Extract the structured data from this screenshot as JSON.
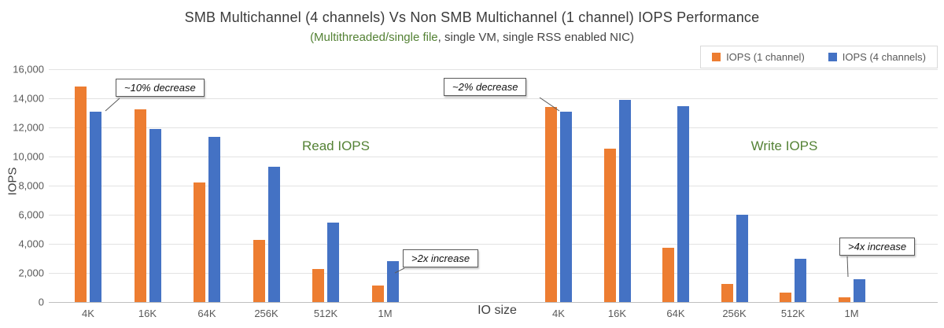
{
  "chart_data": {
    "type": "bar",
    "title": "SMB Multichannel (4 channels) Vs Non SMB Multichannel (1 channel) IOPS Performance",
    "subtitle_highlight": "(Multithreaded/single file",
    "subtitle_rest": ", single VM, single RSS enabled NIC)",
    "ylabel": "IOPS",
    "xlabel": "IO size",
    "ylim": [
      0,
      16000
    ],
    "ytick_step": 2000,
    "grid": true,
    "legend_position": "top-right",
    "categories": [
      "4K",
      "16K",
      "64K",
      "256K",
      "512K",
      "1M",
      "4K",
      "16K",
      "64K",
      "256K",
      "512K",
      "1M"
    ],
    "group_labels": [
      "Read IOPS",
      "Write IOPS"
    ],
    "series": [
      {
        "name": "IOPS (1 channel)",
        "color": "#ED7D31",
        "values": [
          14800,
          13250,
          8200,
          4250,
          2250,
          1150,
          13400,
          10550,
          3750,
          1250,
          650,
          300
        ]
      },
      {
        "name": "IOPS (4 channels)",
        "color": "#4472C4",
        "values": [
          13100,
          11900,
          11350,
          9300,
          5450,
          2800,
          13100,
          13900,
          13450,
          6000,
          2950,
          1550
        ]
      }
    ],
    "annotations": [
      "~10% decrease",
      "~2% decrease",
      ">2x increase",
      ">4x increase"
    ]
  }
}
